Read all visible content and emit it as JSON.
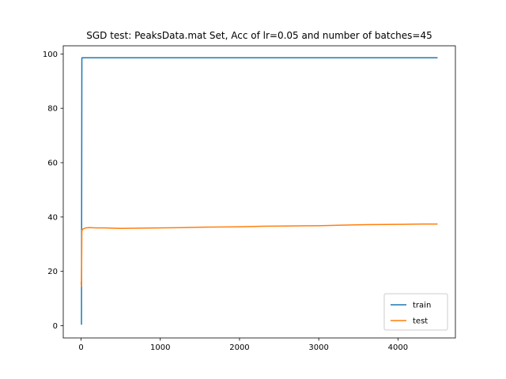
{
  "chart_data": {
    "type": "line",
    "title": "SGD test: PeaksData.mat Set, Acc of lr=0.05 and number of batches=45",
    "xlabel": "",
    "ylabel": "",
    "xlim": [
      -225,
      4725
    ],
    "ylim": [
      -4.5,
      103
    ],
    "xticks": [
      0,
      1000,
      2000,
      3000,
      4000
    ],
    "yticks": [
      0,
      20,
      40,
      60,
      80,
      100
    ],
    "grid": false,
    "legend_position": "lower right",
    "series": [
      {
        "name": "train",
        "color": "#1f77b4",
        "x": [
          0,
          5,
          10,
          15,
          20,
          30,
          60,
          100,
          500,
          1000,
          1500,
          2000,
          2500,
          3000,
          3500,
          4000,
          4500
        ],
        "y": [
          0.5,
          0.5,
          98.5,
          98.6,
          98.6,
          98.6,
          98.6,
          98.6,
          98.6,
          98.6,
          98.6,
          98.6,
          98.6,
          98.6,
          98.6,
          98.6,
          98.6
        ]
      },
      {
        "name": "test",
        "color": "#ff7f0e",
        "x": [
          0,
          5,
          10,
          15,
          20,
          40,
          60,
          100,
          200,
          300,
          400,
          500,
          700,
          1000,
          1300,
          1600,
          2000,
          2300,
          2600,
          3000,
          3300,
          3600,
          4000,
          4300,
          4500
        ],
        "y": [
          16,
          14.5,
          34.8,
          35.3,
          35.5,
          35.8,
          36.0,
          36.1,
          36.0,
          36.0,
          35.9,
          35.8,
          35.9,
          36.0,
          36.1,
          36.3,
          36.4,
          36.6,
          36.7,
          36.8,
          37.0,
          37.2,
          37.3,
          37.4,
          37.4
        ]
      }
    ]
  }
}
